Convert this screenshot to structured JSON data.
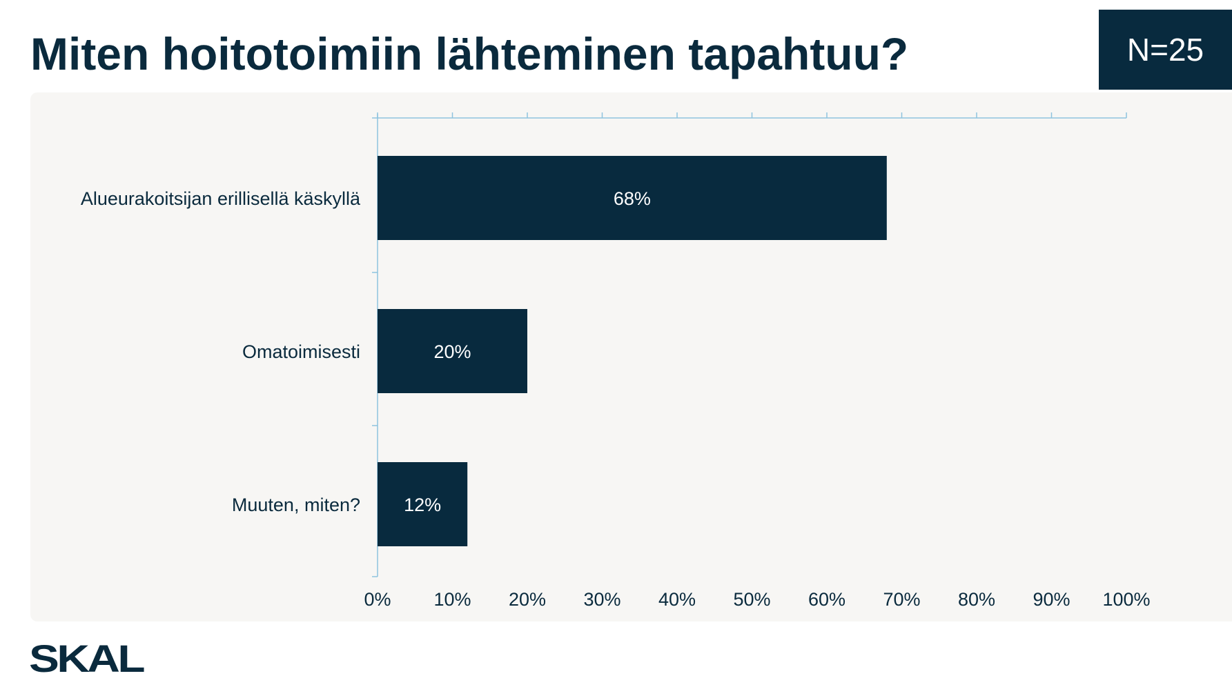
{
  "header": {
    "title": "Miten hoitotoimiin lähteminen tapahtuu?",
    "n_label": "N=25"
  },
  "logo": {
    "text": "SKAL"
  },
  "colors": {
    "bar": "#082a3e",
    "axis": "#8ec3df",
    "panel": "#f7f6f4",
    "text": "#0a2a3d"
  },
  "chart_data": {
    "type": "bar",
    "orientation": "horizontal",
    "title": "",
    "categories": [
      "Alueurakoitsijan erillisellä käskyllä",
      "Omatoimisesti",
      "Muuten, miten?"
    ],
    "values": [
      68,
      20,
      12
    ],
    "data_labels": [
      "68%",
      "20%",
      "12%"
    ],
    "xlim": [
      0,
      100
    ],
    "x_ticks": [
      "0%",
      "10%",
      "20%",
      "30%",
      "40%",
      "50%",
      "60%",
      "70%",
      "80%",
      "90%",
      "100%"
    ],
    "grid": false,
    "legend": "none"
  }
}
